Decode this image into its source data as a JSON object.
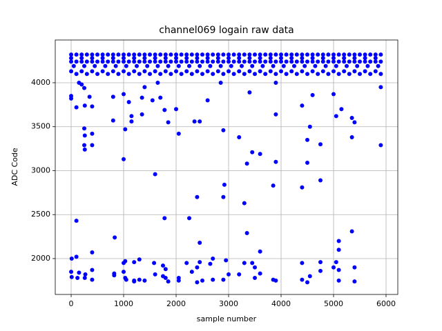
{
  "chart_data": {
    "type": "scatter",
    "title": "channel069 logain raw data",
    "x_label": "sample number",
    "y_label": "ADC Code",
    "color": "#0000ff",
    "grid": true,
    "xlim": [
      -303,
      6224
    ],
    "ylim": [
      1592,
      4486
    ],
    "xticks": [
      0,
      1000,
      2000,
      3000,
      4000,
      5000,
      6000
    ],
    "yticks": [
      2000,
      2500,
      3000,
      3500,
      4000
    ],
    "x": [
      0,
      100,
      200,
      300,
      400,
      500,
      600,
      700,
      800,
      900,
      1000,
      1100,
      1200,
      1300,
      1400,
      1500,
      1600,
      1700,
      1800,
      1900,
      2000,
      2100,
      2200,
      2300,
      2400,
      2500,
      2600,
      2700,
      2800,
      2900,
      3000,
      3100,
      3200,
      3300,
      3400,
      3500,
      3600,
      3700,
      3800,
      3900,
      4000,
      4100,
      4200,
      4300,
      4400,
      4500,
      4600,
      4700,
      4800,
      4900,
      5000,
      5100,
      5200,
      5300,
      5400,
      5500,
      5600,
      5700,
      5800,
      5900,
      0,
      100,
      200,
      300,
      400,
      500,
      600,
      700,
      800,
      900,
      1000,
      1100,
      1200,
      1300,
      1400,
      1500,
      1600,
      1700,
      1800,
      1900,
      2000,
      2100,
      2200,
      2300,
      2400,
      2500,
      2600,
      2700,
      2800,
      2900,
      3000,
      3100,
      3200,
      3300,
      3400,
      3500,
      3600,
      3700,
      3800,
      3900,
      4000,
      4100,
      4200,
      4300,
      4400,
      4500,
      4600,
      4700,
      4800,
      4900,
      5000,
      5100,
      5200,
      5300,
      5400,
      5500,
      5600,
      5700,
      5800,
      5900,
      0,
      200,
      400,
      600,
      800,
      1000,
      1200,
      1400,
      1600,
      1800,
      2000,
      2200,
      2400,
      2600,
      2800,
      3000,
      3200,
      3400,
      3600,
      3800,
      4000,
      4200,
      4400,
      4600,
      4800,
      5000,
      5200,
      5400,
      5600,
      5800,
      50,
      250,
      450,
      650,
      850,
      1050,
      1250,
      1450,
      1650,
      1850,
      2050,
      2250,
      2450,
      2650,
      2850,
      3050,
      3250,
      3450,
      3650,
      3850,
      4050,
      4250,
      4450,
      4650,
      4850,
      5050,
      5250,
      5450,
      5650,
      5850,
      0,
      200,
      400,
      600,
      800,
      1000,
      1200,
      1400,
      1600,
      1800,
      2000,
      2200,
      2400,
      2600,
      2800,
      3000,
      3200,
      3400,
      3600,
      3800,
      4000,
      4200,
      4400,
      4600,
      4800,
      5000,
      5200,
      5400,
      5600,
      5800,
      100,
      300,
      500,
      700,
      900,
      1100,
      1300,
      1500,
      1700,
      1900,
      2100,
      2300,
      2500,
      2700,
      2900,
      3100,
      3300,
      3500,
      3700,
      3900,
      4100,
      4300,
      4500,
      4700,
      4900,
      5100,
      5300,
      5500,
      5700,
      5900,
      0,
      0,
      10,
      0,
      10,
      100,
      100,
      100,
      120,
      150,
      150,
      200,
      250,
      260,
      250,
      260,
      250,
      260,
      260,
      270,
      350,
      400,
      400,
      400,
      400,
      400,
      400,
      800,
      800,
      830,
      820,
      820,
      1000,
      1000,
      1030,
      1000,
      1030,
      1000,
      1030,
      1050,
      1100,
      1150,
      1150,
      1200,
      1200,
      1200,
      1300,
      1300,
      1350,
      1350,
      1400,
      1400,
      1550,
      1580,
      1600,
      1600,
      1650,
      1700,
      1750,
      1750,
      1780,
      1780,
      1800,
      1800,
      1850,
      1850,
      2000,
      2050,
      2050,
      2050,
      2200,
      2250,
      2300,
      2350,
      2400,
      2400,
      2400,
      2450,
      2450,
      2450,
      2500,
      2600,
      2650,
      2700,
      2700,
      2850,
      2900,
      2900,
      2920,
      2900,
      2950,
      3000,
      3200,
      3200,
      3300,
      3300,
      3350,
      3350,
      3400,
      3450,
      3450,
      3500,
      3500,
      3600,
      3600,
      3600,
      3850,
      3850,
      3900,
      3900,
      3900,
      3900,
      4400,
      4400,
      4400,
      4400,
      4500,
      4500,
      4500,
      4550,
      4550,
      4600,
      4750,
      4750,
      4750,
      4750,
      5000,
      5000,
      5050,
      5050,
      5100,
      5100,
      5100,
      5100,
      5150,
      5350,
      5350,
      5350,
      5400,
      5400,
      5400,
      5900,
      5900
    ],
    "y": [
      4320,
      4320,
      4320,
      4320,
      4320,
      4320,
      4320,
      4320,
      4320,
      4320,
      4320,
      4320,
      4320,
      4320,
      4320,
      4320,
      4320,
      4320,
      4320,
      4320,
      4320,
      4320,
      4320,
      4320,
      4320,
      4320,
      4320,
      4320,
      4320,
      4320,
      4320,
      4320,
      4320,
      4320,
      4320,
      4320,
      4320,
      4320,
      4320,
      4320,
      4320,
      4320,
      4320,
      4320,
      4320,
      4320,
      4320,
      4320,
      4320,
      4320,
      4320,
      4320,
      4320,
      4320,
      4320,
      4320,
      4320,
      4320,
      4320,
      4320,
      4240,
      4240,
      4240,
      4240,
      4240,
      4240,
      4240,
      4240,
      4240,
      4240,
      4240,
      4240,
      4240,
      4240,
      4240,
      4240,
      4240,
      4240,
      4240,
      4240,
      4240,
      4240,
      4240,
      4240,
      4240,
      4240,
      4240,
      4240,
      4240,
      4240,
      4240,
      4240,
      4240,
      4240,
      4240,
      4240,
      4240,
      4240,
      4240,
      4240,
      4240,
      4240,
      4240,
      4240,
      4240,
      4240,
      4240,
      4240,
      4240,
      4240,
      4240,
      4240,
      4240,
      4240,
      4240,
      4240,
      4240,
      4240,
      4240,
      4240,
      4280,
      4280,
      4280,
      4280,
      4280,
      4280,
      4280,
      4280,
      4280,
      4280,
      4280,
      4280,
      4280,
      4280,
      4280,
      4280,
      4280,
      4280,
      4280,
      4280,
      4280,
      4280,
      4280,
      4280,
      4280,
      4280,
      4280,
      4280,
      4280,
      4280,
      4190,
      4190,
      4190,
      4190,
      4190,
      4190,
      4190,
      4190,
      4190,
      4190,
      4190,
      4190,
      4190,
      4190,
      4190,
      4190,
      4190,
      4190,
      4190,
      4190,
      4190,
      4190,
      4190,
      4190,
      4190,
      4190,
      4190,
      4190,
      4190,
      4190,
      4130,
      4130,
      4130,
      4130,
      4130,
      4130,
      4130,
      4130,
      4130,
      4130,
      4130,
      4130,
      4130,
      4130,
      4130,
      4130,
      4130,
      4130,
      4130,
      4130,
      4130,
      4130,
      4130,
      4130,
      4130,
      4130,
      4130,
      4130,
      4130,
      4130,
      4100,
      4100,
      4100,
      4100,
      4100,
      4100,
      4100,
      4100,
      4100,
      4100,
      4100,
      4100,
      4100,
      4100,
      4100,
      4100,
      4100,
      4100,
      4100,
      4100,
      4100,
      4100,
      4100,
      4100,
      4100,
      4100,
      4100,
      4100,
      4100,
      4100,
      3820,
      3850,
      2000,
      1850,
      1790,
      3720,
      2430,
      2020,
      1780,
      1840,
      4000,
      3980,
      3940,
      3740,
      3480,
      3400,
      3290,
      3240,
      1780,
      1820,
      3840,
      3730,
      3420,
      3290,
      2070,
      1870,
      1760,
      3570,
      3840,
      2240,
      1830,
      1810,
      3870,
      3130,
      3470,
      1950,
      1970,
      1850,
      1780,
      1760,
      3780,
      3620,
      3560,
      1960,
      1750,
      1740,
      1990,
      1760,
      3830,
      3640,
      3950,
      1750,
      3800,
      1950,
      2960,
      1820,
      4000,
      3830,
      1920,
      1800,
      2460,
      3690,
      1880,
      1780,
      3550,
      1740,
      3700,
      3420,
      1780,
      1750,
      1950,
      2460,
      1850,
      3560,
      2700,
      1730,
      1900,
      2180,
      3560,
      1960,
      1750,
      3800,
      1940,
      2000,
      1760,
      4000,
      3460,
      2700,
      2840,
      1760,
      1980,
      1820,
      3380,
      1820,
      2630,
      1950,
      3080,
      2290,
      3890,
      3210,
      1950,
      1900,
      1780,
      3190,
      2080,
      1830,
      2830,
      1760,
      3100,
      3640,
      1750,
      4000,
      2810,
      3740,
      1760,
      1950,
      3350,
      3090,
      1730,
      3500,
      1800,
      3860,
      2890,
      3300,
      1960,
      1860,
      3870,
      1900,
      1960,
      3620,
      2200,
      2100,
      1870,
      1750,
      3700,
      3380,
      2310,
      3600,
      1900,
      1740,
      3550,
      3290,
      3950
    ]
  }
}
